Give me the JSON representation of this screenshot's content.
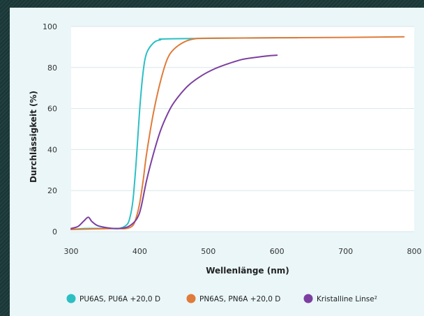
{
  "chart_data": {
    "type": "line",
    "title": "",
    "xlabel": "Wellenlänge (nm)",
    "ylabel": "Durchlässigkeit (%)",
    "xlim": [
      300,
      800
    ],
    "ylim": [
      0,
      100
    ],
    "x_ticks": [
      "300",
      "400",
      "500",
      "600",
      "700",
      "800"
    ],
    "y_ticks": [
      "0",
      "20",
      "40",
      "60",
      "80",
      "100"
    ],
    "grid": "horizontal",
    "legend_position": "bottom",
    "series": [
      {
        "name": "PU6AS, PU6A +20,0 D",
        "color": "#2bbfc4",
        "points": [
          [
            300,
            1
          ],
          [
            320,
            1.5
          ],
          [
            360,
            1.5
          ],
          [
            370,
            1.5
          ],
          [
            380,
            3
          ],
          [
            385,
            6
          ],
          [
            390,
            15
          ],
          [
            395,
            35
          ],
          [
            400,
            60
          ],
          [
            405,
            78
          ],
          [
            410,
            87
          ],
          [
            420,
            92
          ],
          [
            430,
            93.5
          ],
          [
            445,
            94
          ],
          [
            600,
            94.5
          ],
          [
            630,
            94.5
          ]
        ]
      },
      {
        "name": "PN6AS, PN6A +20,0 D",
        "color": "#e07b3a",
        "points": [
          [
            300,
            1
          ],
          [
            360,
            1.5
          ],
          [
            380,
            1.5
          ],
          [
            390,
            3
          ],
          [
            395,
            7
          ],
          [
            400,
            14
          ],
          [
            405,
            25
          ],
          [
            410,
            38
          ],
          [
            420,
            58
          ],
          [
            430,
            73
          ],
          [
            440,
            84
          ],
          [
            450,
            89
          ],
          [
            465,
            92.5
          ],
          [
            480,
            94
          ],
          [
            500,
            94.3
          ],
          [
            600,
            94.5
          ],
          [
            700,
            94.7
          ],
          [
            785,
            95
          ]
        ]
      },
      {
        "name": "Kristalline Linse²",
        "color": "#7b3fa0",
        "points": [
          [
            300,
            1.5
          ],
          [
            310,
            2.5
          ],
          [
            318,
            5
          ],
          [
            325,
            7
          ],
          [
            330,
            5
          ],
          [
            338,
            3
          ],
          [
            350,
            2
          ],
          [
            365,
            1.5
          ],
          [
            380,
            2
          ],
          [
            390,
            4
          ],
          [
            397,
            7
          ],
          [
            402,
            12
          ],
          [
            410,
            25
          ],
          [
            420,
            38
          ],
          [
            430,
            49
          ],
          [
            440,
            57
          ],
          [
            450,
            63
          ],
          [
            470,
            71
          ],
          [
            490,
            76
          ],
          [
            510,
            79.5
          ],
          [
            530,
            82
          ],
          [
            550,
            84
          ],
          [
            570,
            85
          ],
          [
            590,
            85.8
          ],
          [
            600,
            86
          ]
        ]
      }
    ]
  }
}
